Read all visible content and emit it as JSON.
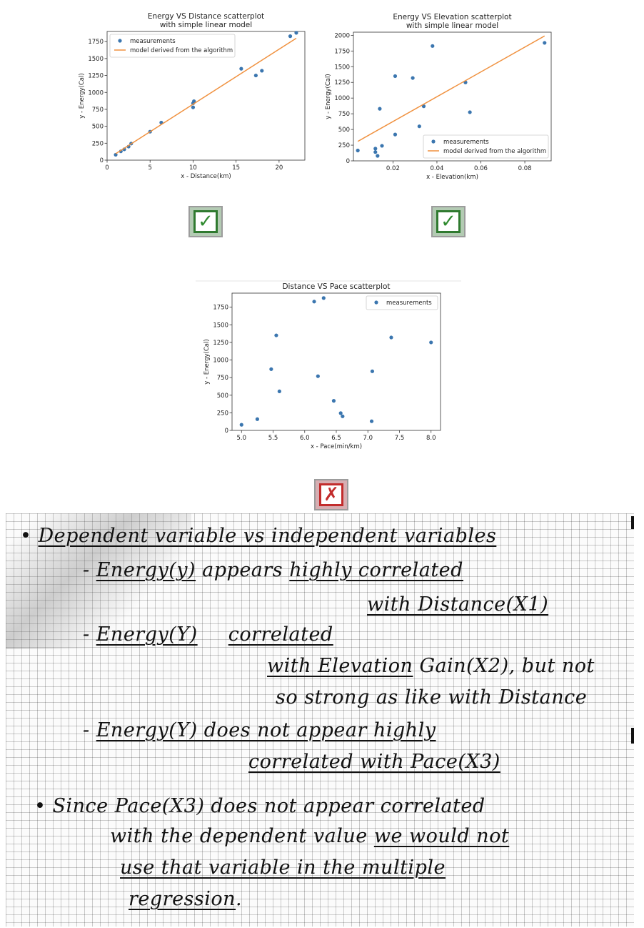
{
  "chart_data": [
    {
      "type": "scatter",
      "title": "Energy VS Distance scatterplot\nwith simple linear model",
      "xlabel": "x - Distance(km)",
      "ylabel": "y - Energy(Cal)",
      "xlim": [
        0,
        23
      ],
      "ylim": [
        0,
        1900
      ],
      "xticks": [
        0,
        5,
        10,
        15,
        20
      ],
      "yticks": [
        0,
        250,
        500,
        750,
        1000,
        1250,
        1500,
        1750
      ],
      "legend_position": "upper-left",
      "legend": [
        "measurements",
        "model derived from the algorithm"
      ],
      "series": [
        {
          "name": "measurements",
          "kind": "points",
          "color": "#3b76af",
          "x": [
            1.0,
            1.6,
            2.0,
            2.5,
            2.8,
            5.0,
            6.3,
            10.0,
            10.0,
            10.1,
            15.6,
            17.3,
            18.0,
            21.3,
            22.0
          ],
          "y": [
            80,
            130,
            160,
            200,
            245,
            420,
            555,
            780,
            840,
            870,
            1350,
            1250,
            1320,
            1830,
            1880
          ]
        },
        {
          "name": "model derived from the algorithm",
          "kind": "line",
          "color": "#f0913f",
          "x": [
            1.0,
            22.0
          ],
          "y": [
            95,
            1800
          ]
        }
      ]
    },
    {
      "type": "scatter",
      "title": "Energy VS Elevation scatterplot\nwith simple linear model",
      "xlabel": "x - Elevation(km)",
      "ylabel": "y - Energy(Cal)",
      "xlim": [
        0.002,
        0.092
      ],
      "ylim": [
        0,
        2050
      ],
      "xticks": [
        0.02,
        0.04,
        0.06,
        0.08
      ],
      "yticks": [
        0,
        250,
        500,
        750,
        1000,
        1250,
        1500,
        1750,
        2000
      ],
      "legend_position": "lower-right",
      "legend": [
        "measurements",
        "model derived from the algorithm"
      ],
      "series": [
        {
          "name": "measurements",
          "kind": "points",
          "color": "#3b76af",
          "x": [
            0.004,
            0.012,
            0.012,
            0.013,
            0.014,
            0.015,
            0.021,
            0.021,
            0.029,
            0.032,
            0.034,
            0.038,
            0.053,
            0.055,
            0.089
          ],
          "y": [
            165,
            195,
            140,
            80,
            830,
            240,
            420,
            1350,
            1320,
            550,
            870,
            1830,
            1250,
            775,
            1880
          ]
        },
        {
          "name": "model derived from the algorithm",
          "kind": "line",
          "color": "#f0913f",
          "x": [
            0.004,
            0.089
          ],
          "y": [
            310,
            1990
          ]
        }
      ]
    },
    {
      "type": "scatter",
      "title": "Distance VS Pace scatterplot",
      "xlabel": "x - Pace(min/km)",
      "ylabel": "y - Energy(Cal)",
      "xlim": [
        4.85,
        8.15
      ],
      "ylim": [
        0,
        1950
      ],
      "xticks": [
        5.0,
        5.5,
        6.0,
        6.5,
        7.0,
        7.5,
        8.0
      ],
      "yticks": [
        0,
        250,
        500,
        750,
        1000,
        1250,
        1500,
        1750
      ],
      "legend_position": "upper-right",
      "legend": [
        "measurements"
      ],
      "series": [
        {
          "name": "measurements",
          "kind": "points",
          "color": "#3b76af",
          "x": [
            5.0,
            5.25,
            5.47,
            5.55,
            5.6,
            6.15,
            6.21,
            6.3,
            6.46,
            6.57,
            6.6,
            7.06,
            7.07,
            7.37,
            8.0
          ],
          "y": [
            80,
            160,
            870,
            1350,
            555,
            1830,
            770,
            1880,
            420,
            245,
            200,
            130,
            840,
            1320,
            1250
          ]
        }
      ]
    }
  ],
  "badges": [
    {
      "type": "check",
      "symbol": "✓",
      "color": "#2f8a2f"
    },
    {
      "type": "check",
      "symbol": "✓",
      "color": "#2f8a2f"
    },
    {
      "type": "cross",
      "symbol": "✗",
      "color": "#c22c2c"
    }
  ],
  "notes": {
    "line1": {
      "bullet": "•",
      "text": "Dependent variable vs independent variables"
    },
    "line2": {
      "dash": "-",
      "a": "Energy(y)",
      "b": "appears",
      "c": "highly correlated"
    },
    "line3": {
      "text": "with Distance(X1)"
    },
    "line4": {
      "dash": "-",
      "a": "Energy(Y)",
      "b": "correlated"
    },
    "line5": {
      "a": "with Elevation",
      "b": "Gain(X2), but not"
    },
    "line6": {
      "text": "so strong as like with Distance"
    },
    "line7": {
      "dash": "-",
      "text": "Energy(Y) does not appear highly"
    },
    "line8": {
      "text": "correlated with Pace(X3)"
    },
    "line9": {
      "bullet": "•",
      "text": "Since Pace(X3) does not appear correlated"
    },
    "line10": {
      "a": "with the dependent value",
      "b": "we would not"
    },
    "line11": {
      "text": "use that variable in the multiple"
    },
    "line12": {
      "text": "regression",
      "end": "."
    }
  }
}
